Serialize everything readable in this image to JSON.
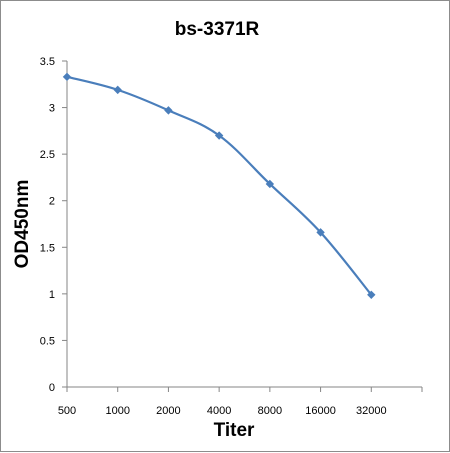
{
  "chart_data": {
    "type": "line",
    "title": "bs-3371R",
    "xlabel": "Titer",
    "ylabel": "OD450nm",
    "categories": [
      "500",
      "1000",
      "2000",
      "4000",
      "8000",
      "16000",
      "32000"
    ],
    "series": [
      {
        "values": [
          3.33,
          3.19,
          2.97,
          2.7,
          2.18,
          1.66,
          0.99
        ]
      }
    ],
    "yticks": [
      "0",
      "0.5",
      "1",
      "1.5",
      "2",
      "2.5",
      "3",
      "3.5"
    ],
    "ylim": [
      0,
      3.5
    ],
    "grid": false,
    "legend": "none",
    "colors": {
      "series": "#4a7ebb",
      "axis": "#868686"
    }
  }
}
